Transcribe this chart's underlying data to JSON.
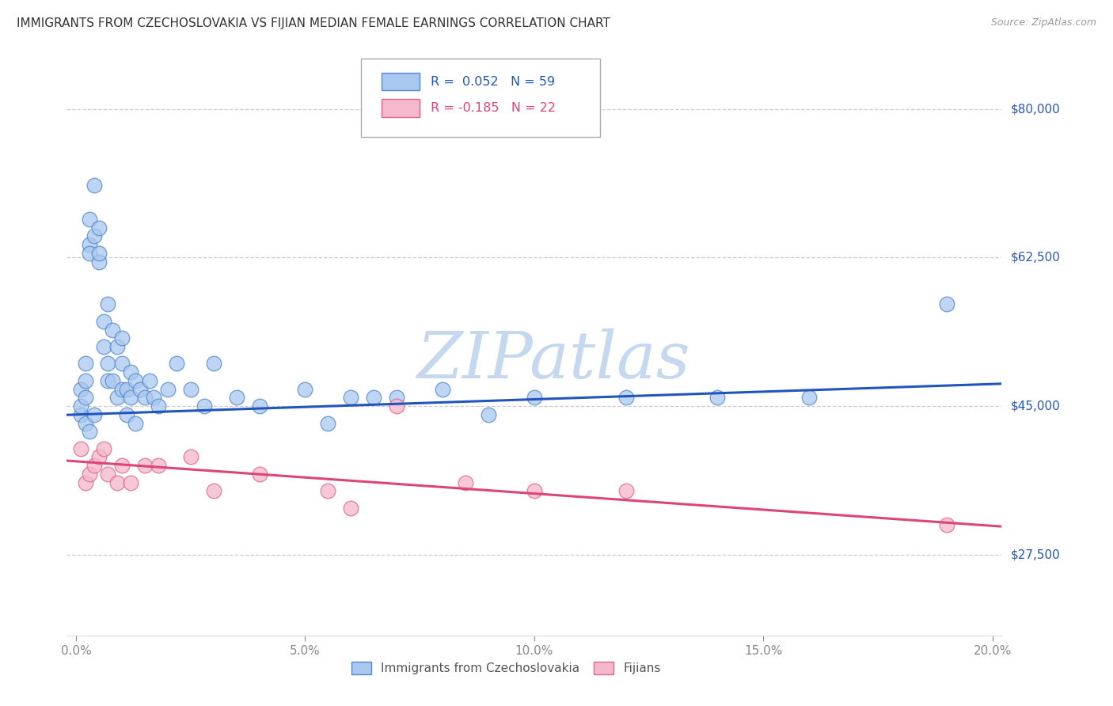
{
  "title": "IMMIGRANTS FROM CZECHOSLOVAKIA VS FIJIAN MEDIAN FEMALE EARNINGS CORRELATION CHART",
  "source": "Source: ZipAtlas.com",
  "xlim": [
    -0.002,
    0.202
  ],
  "ylim": [
    18000,
    87000
  ],
  "blue_r": "0.052",
  "blue_n": "59",
  "pink_r": "-0.185",
  "pink_n": "22",
  "blue_label": "Immigrants from Czechoslovakia",
  "pink_label": "Fijians",
  "blue_color": "#a8c8f0",
  "pink_color": "#f5b8cc",
  "blue_edge_color": "#5588cc",
  "pink_edge_color": "#dd6688",
  "blue_line_color": "#2255bb",
  "pink_line_color": "#dd4477",
  "gridline_color": "#cccccc",
  "background_color": "#ffffff",
  "watermark_color": "#c5d8f0",
  "ylabel_color": "#2255bb",
  "tick_color": "#888888",
  "blue_line_intercept": 44000,
  "blue_line_slope": 18000,
  "pink_line_intercept": 38500,
  "pink_line_slope": -38000,
  "blue_x": [
    0.001,
    0.001,
    0.001,
    0.002,
    0.002,
    0.002,
    0.002,
    0.003,
    0.003,
    0.003,
    0.003,
    0.004,
    0.004,
    0.004,
    0.005,
    0.005,
    0.005,
    0.006,
    0.006,
    0.007,
    0.007,
    0.007,
    0.008,
    0.008,
    0.009,
    0.009,
    0.01,
    0.01,
    0.01,
    0.011,
    0.011,
    0.012,
    0.012,
    0.013,
    0.013,
    0.014,
    0.015,
    0.016,
    0.017,
    0.018,
    0.02,
    0.022,
    0.025,
    0.028,
    0.03,
    0.035,
    0.04,
    0.05,
    0.055,
    0.06,
    0.065,
    0.07,
    0.08,
    0.09,
    0.1,
    0.12,
    0.14,
    0.16,
    0.19
  ],
  "blue_y": [
    44000,
    45000,
    47000,
    43000,
    46000,
    48000,
    50000,
    64000,
    67000,
    63000,
    42000,
    65000,
    71000,
    44000,
    62000,
    63000,
    66000,
    55000,
    52000,
    57000,
    50000,
    48000,
    54000,
    48000,
    52000,
    46000,
    53000,
    50000,
    47000,
    47000,
    44000,
    49000,
    46000,
    48000,
    43000,
    47000,
    46000,
    48000,
    46000,
    45000,
    47000,
    50000,
    47000,
    45000,
    50000,
    46000,
    45000,
    47000,
    43000,
    46000,
    46000,
    46000,
    47000,
    44000,
    46000,
    46000,
    46000,
    46000,
    57000
  ],
  "pink_x": [
    0.001,
    0.002,
    0.003,
    0.004,
    0.005,
    0.006,
    0.007,
    0.009,
    0.01,
    0.012,
    0.015,
    0.018,
    0.025,
    0.03,
    0.04,
    0.055,
    0.06,
    0.07,
    0.085,
    0.1,
    0.12,
    0.19
  ],
  "pink_y": [
    40000,
    36000,
    37000,
    38000,
    39000,
    40000,
    37000,
    36000,
    38000,
    36000,
    38000,
    38000,
    39000,
    35000,
    37000,
    35000,
    33000,
    45000,
    36000,
    35000,
    35000,
    31000
  ]
}
